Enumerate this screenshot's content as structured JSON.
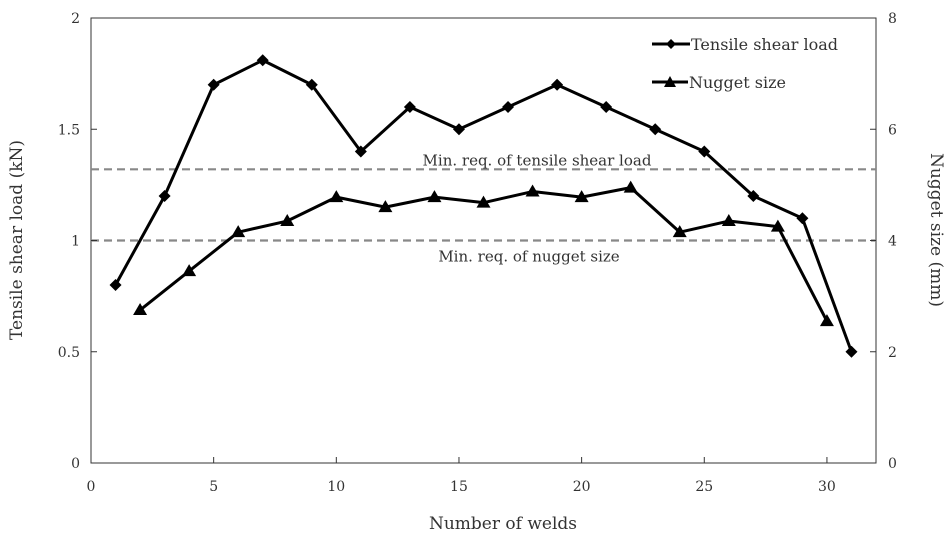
{
  "chart_data": {
    "type": "line",
    "xlabel": "Number of welds",
    "ylabel_left": "Tensile shear load (kN)",
    "ylabel_right": "Nugget size (mm)",
    "xlim": [
      0,
      32
    ],
    "ylim_left": [
      0,
      2
    ],
    "ylim_right": [
      0,
      8
    ],
    "x_ticks": [
      0,
      5,
      10,
      15,
      20,
      25,
      30
    ],
    "y_ticks_left": [
      {
        "value": 0,
        "label": "0"
      },
      {
        "value": 0.5,
        "label": "0.5"
      },
      {
        "value": 1,
        "label": "1"
      },
      {
        "value": 1.5,
        "label": "1.5"
      },
      {
        "value": 2,
        "label": "2"
      }
    ],
    "y_ticks_right": [
      0,
      2,
      4,
      6,
      8
    ],
    "grid": false,
    "legend_position": "top-right",
    "series": [
      {
        "name": "Tensile shear load",
        "axis": "left",
        "marker": "diamond",
        "x": [
          1,
          3,
          5,
          7,
          9,
          11,
          13,
          15,
          17,
          19,
          21,
          23,
          25,
          27,
          29,
          31
        ],
        "y": [
          0.8,
          1.2,
          1.7,
          1.81,
          1.7,
          1.4,
          1.6,
          1.5,
          1.6,
          1.7,
          1.6,
          1.5,
          1.4,
          1.2,
          1.1,
          0.5
        ]
      },
      {
        "name": "Nugget size",
        "axis": "right",
        "marker": "triangle",
        "x": [
          2,
          4,
          6,
          8,
          10,
          12,
          14,
          16,
          18,
          20,
          22,
          24,
          26,
          28,
          30
        ],
        "y": [
          2.75,
          3.45,
          4.15,
          4.35,
          4.78,
          4.6,
          4.78,
          4.68,
          4.88,
          4.78,
          4.95,
          4.15,
          4.35,
          4.25,
          2.55
        ]
      }
    ],
    "reference_lines": [
      {
        "label": "Min. req. of tensile shear load",
        "axis": "left",
        "value": 1.32,
        "color": "#888888"
      },
      {
        "label": "Min. req. of nugget size",
        "axis": "left",
        "value": 1.0,
        "color": "#888888"
      }
    ],
    "colors": {
      "series": "#000000",
      "axis": "#333333",
      "reference": "#888888"
    }
  }
}
